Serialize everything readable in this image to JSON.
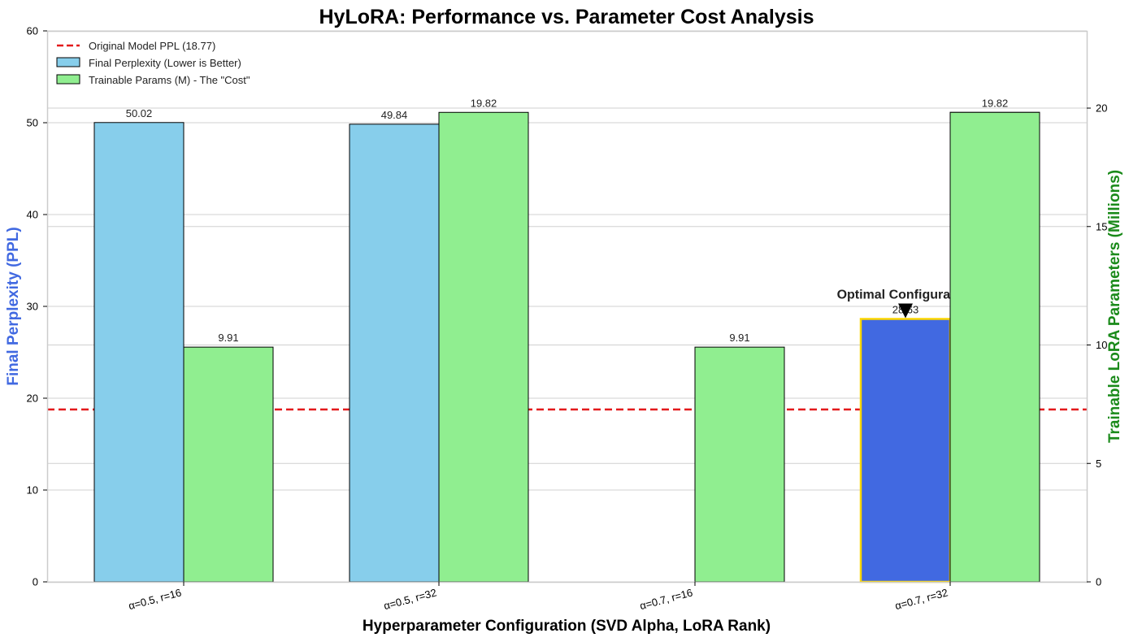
{
  "chart_data": {
    "type": "bar",
    "title": "HyLoRA: Performance vs. Parameter Cost Analysis",
    "xlabel": "Hyperparameter Configuration (SVD Alpha, LoRA Rank)",
    "ylabel": "Final Perplexity (PPL)",
    "y2label": "Trainable LoRA Parameters (Millions)",
    "categories": [
      "α=0.5, r=16",
      "α=0.5, r=32",
      "α=0.7, r=16",
      "α=0.7, r=32"
    ],
    "ylim": [
      0,
      60
    ],
    "y2lim": [
      0,
      23.26
    ],
    "yticks": [
      0,
      10,
      20,
      30,
      40,
      50,
      60
    ],
    "y2ticks": [
      0,
      5,
      10,
      15,
      20
    ],
    "grid": true,
    "legend_position": "top-left",
    "series": [
      {
        "name": "Final Perplexity (Lower is Better)",
        "axis": "left",
        "color": "#87CEEB",
        "highlight_color": "#4169E1",
        "values": [
          50.02,
          49.84,
          null,
          28.63
        ],
        "labels": [
          "50.02",
          "49.84",
          null,
          "28.63"
        ]
      },
      {
        "name": "Trainable Params (M) - The \"Cost\"",
        "axis": "right",
        "color": "#90EE90",
        "values": [
          9.91,
          19.82,
          9.91,
          19.82
        ],
        "labels": [
          "9.91",
          "19.82",
          "9.91",
          "19.82"
        ]
      }
    ],
    "reference_line": {
      "name": "Original Model PPL (18.77)",
      "value": 18.77,
      "color": "#E31A1C",
      "style": "dashed"
    },
    "annotation": {
      "text": "Optimal Configuration",
      "category_index": 3,
      "highlight_edge_color": "#FFD700"
    }
  }
}
